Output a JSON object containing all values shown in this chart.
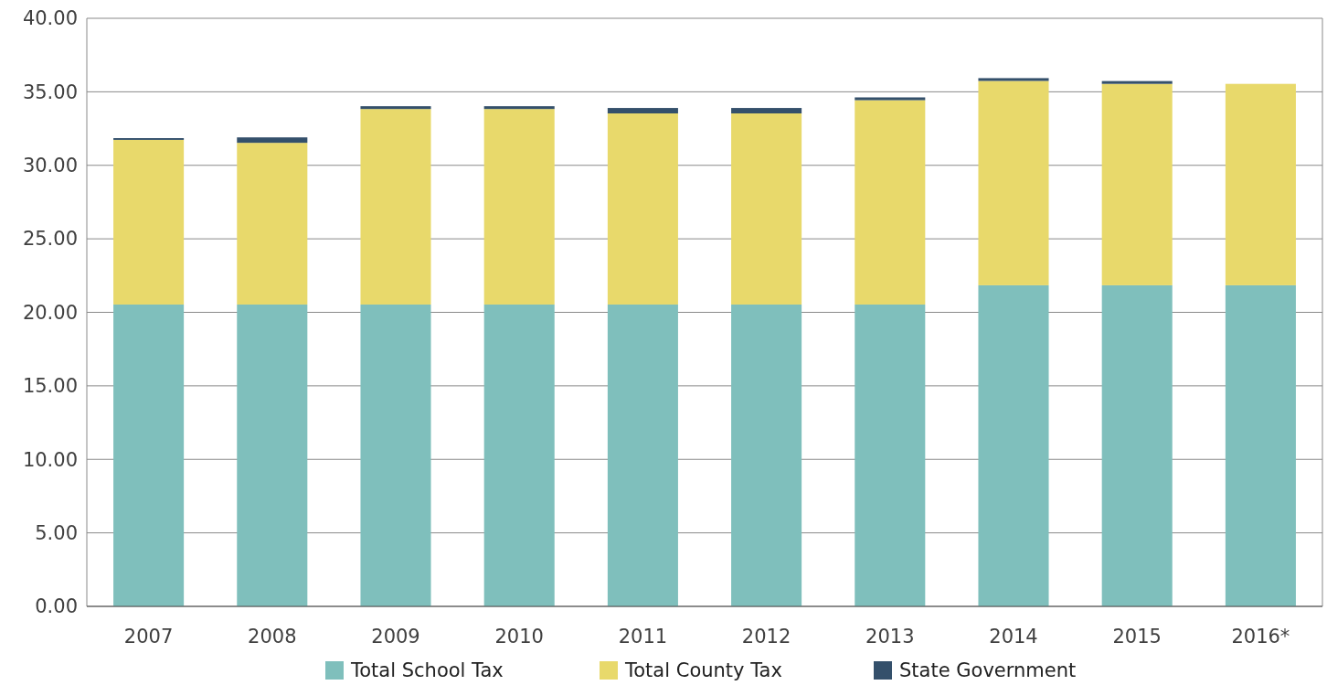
{
  "chart_data": {
    "type": "bar",
    "stacked": true,
    "categories": [
      "2007",
      "2008",
      "2009",
      "2010",
      "2011",
      "2012",
      "2013",
      "2014",
      "2015",
      "2016*"
    ],
    "series": [
      {
        "name": "Total School Tax",
        "color": "#7fbfbc",
        "values": [
          20.53,
          20.53,
          20.53,
          20.53,
          20.53,
          20.53,
          20.53,
          21.84,
          21.84,
          21.84
        ]
      },
      {
        "name": "Total County Tax",
        "color": "#e8d96b",
        "values": [
          11.2,
          11.0,
          13.3,
          13.3,
          13.0,
          13.0,
          13.9,
          13.9,
          13.7,
          13.7
        ]
      },
      {
        "name": "State Government",
        "color": "#34506b",
        "values": [
          0.12,
          0.37,
          0.19,
          0.19,
          0.37,
          0.37,
          0.19,
          0.19,
          0.19,
          0
        ]
      }
    ],
    "ylim": [
      0,
      40
    ],
    "yticks": [
      {
        "value": 0,
        "label": "0.00"
      },
      {
        "value": 5,
        "label": "5.00"
      },
      {
        "value": 10,
        "label": "10.00"
      },
      {
        "value": 15,
        "label": "15.00"
      },
      {
        "value": 20,
        "label": "20.00"
      },
      {
        "value": 25,
        "label": "25.00"
      },
      {
        "value": 30,
        "label": "30.00"
      },
      {
        "value": 35,
        "label": "35.00"
      },
      {
        "value": 40,
        "label": "40.00"
      }
    ],
    "grid": "y",
    "legend": "bottom"
  }
}
